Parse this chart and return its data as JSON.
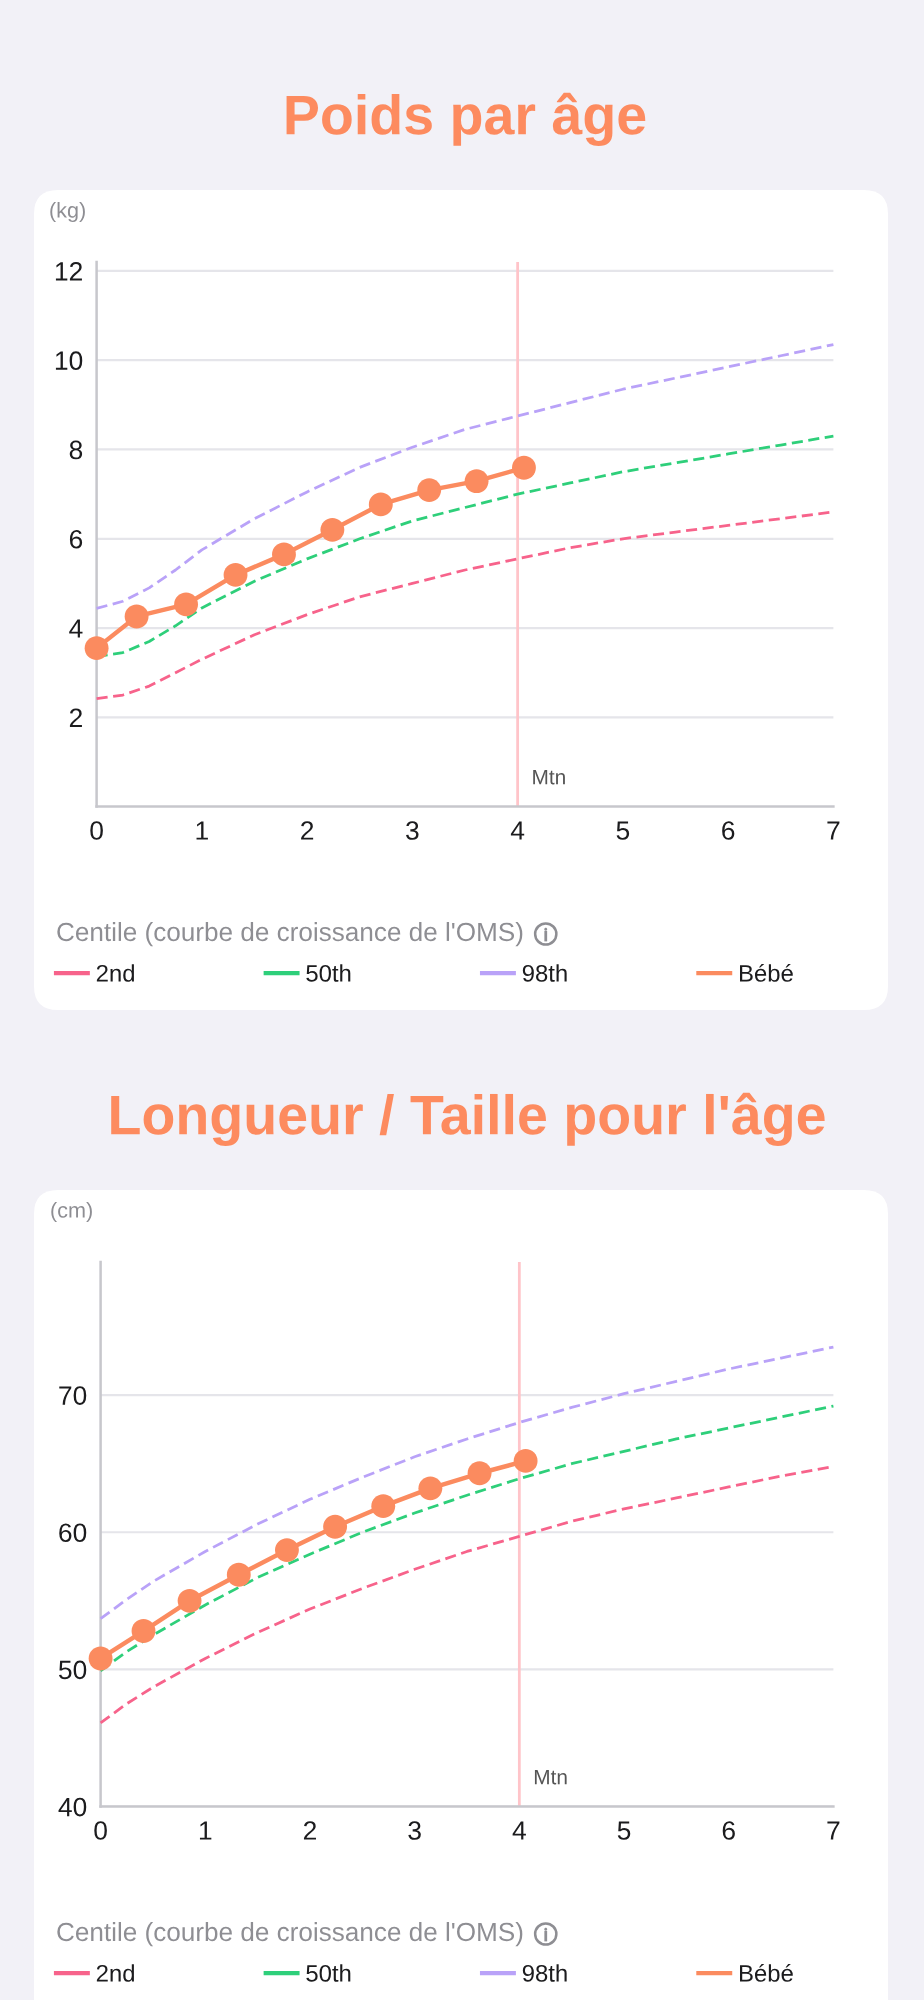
{
  "chart_data": [
    {
      "type": "line",
      "title": "Poids par âge",
      "ylabel": "(kg)",
      "legend_title": "Centile (courbe de croissance de l'OMS)",
      "legend": "bottom",
      "grid": "y",
      "xlim": [
        0,
        7
      ],
      "xticks": [
        0,
        1,
        2,
        3,
        4,
        5,
        6,
        7
      ],
      "ylim": [
        0,
        12.2
      ],
      "yticks": [
        2,
        4,
        6,
        8,
        10,
        12
      ],
      "ref_lines": [
        {
          "axis": "x",
          "value": 4,
          "label": "Mtn",
          "color": "#ffc4c9"
        }
      ],
      "series": [
        {
          "name": "2nd",
          "color": "#f7638b",
          "line_style": "dashed",
          "x": [
            0,
            0.25,
            0.5,
            0.75,
            1,
            1.5,
            2,
            2.5,
            3,
            3.5,
            4,
            4.5,
            5,
            5.5,
            6,
            6.5,
            7
          ],
          "values": [
            2.42,
            2.5,
            2.7,
            3.0,
            3.3,
            3.85,
            4.3,
            4.7,
            5.0,
            5.3,
            5.55,
            5.8,
            6.0,
            6.15,
            6.3,
            6.45,
            6.6
          ]
        },
        {
          "name": "50th",
          "color": "#2ecf7a",
          "line_style": "dashed",
          "x": [
            0,
            0.25,
            0.5,
            0.75,
            1,
            1.5,
            2,
            2.5,
            3,
            3.5,
            4,
            4.5,
            5,
            5.5,
            6,
            6.5,
            7
          ],
          "values": [
            3.36,
            3.45,
            3.7,
            4.05,
            4.45,
            5.05,
            5.55,
            6.0,
            6.4,
            6.7,
            7.0,
            7.25,
            7.5,
            7.7,
            7.9,
            8.1,
            8.3
          ]
        },
        {
          "name": "98th",
          "color": "#b9a2f8",
          "line_style": "dashed",
          "x": [
            0,
            0.25,
            0.5,
            0.75,
            1,
            1.5,
            2,
            2.5,
            3,
            3.5,
            4,
            4.5,
            5,
            5.5,
            6,
            6.5,
            7
          ],
          "values": [
            4.44,
            4.6,
            4.9,
            5.3,
            5.75,
            6.45,
            7.05,
            7.6,
            8.05,
            8.45,
            8.75,
            9.05,
            9.35,
            9.6,
            9.85,
            10.1,
            10.35
          ]
        },
        {
          "name": "Bébé",
          "color": "#fb8b5f",
          "line_style": "solid",
          "marker": "circle",
          "x": [
            0,
            0.38,
            0.85,
            1.32,
            1.78,
            2.24,
            2.7,
            3.16,
            3.61,
            4.06
          ],
          "values": [
            3.55,
            4.26,
            4.53,
            5.19,
            5.65,
            6.2,
            6.77,
            7.09,
            7.29,
            7.59
          ]
        }
      ]
    },
    {
      "type": "line",
      "title": "Longueur / Taille pour l'âge",
      "ylabel": "(cm)",
      "legend_title": "Centile (courbe de croissance de l'OMS)",
      "legend": "bottom",
      "grid": "y",
      "xlim": [
        0,
        7
      ],
      "xticks": [
        0,
        1,
        2,
        3,
        4,
        5,
        6,
        7
      ],
      "ylim": [
        40,
        79.7
      ],
      "yticks": [
        40,
        50,
        60,
        70
      ],
      "ref_lines": [
        {
          "axis": "x",
          "value": 4,
          "label": "Mtn",
          "color": "#ffc4c9"
        }
      ],
      "series": [
        {
          "name": "2nd",
          "color": "#f7638b",
          "line_style": "dashed",
          "x": [
            0,
            0.25,
            0.5,
            1,
            1.5,
            2,
            2.5,
            3,
            3.5,
            4,
            4.5,
            5,
            5.5,
            6,
            6.5,
            7
          ],
          "values": [
            46.1,
            47.5,
            48.7,
            50.8,
            52.7,
            54.4,
            55.9,
            57.3,
            58.6,
            59.7,
            60.8,
            61.7,
            62.5,
            63.3,
            64.1,
            64.8
          ]
        },
        {
          "name": "50th",
          "color": "#2ecf7a",
          "line_style": "dashed",
          "x": [
            0,
            0.25,
            0.5,
            1,
            1.5,
            2,
            2.5,
            3,
            3.5,
            4,
            4.5,
            5,
            5.5,
            6,
            6.5,
            7
          ],
          "values": [
            49.9,
            51.3,
            52.5,
            54.7,
            56.7,
            58.4,
            60.0,
            61.4,
            62.7,
            63.9,
            65.0,
            65.9,
            66.8,
            67.6,
            68.4,
            69.2
          ]
        },
        {
          "name": "98th",
          "color": "#b9a2f8",
          "line_style": "dashed",
          "x": [
            0,
            0.25,
            0.5,
            1,
            1.5,
            2,
            2.5,
            3,
            3.5,
            4,
            4.5,
            5,
            5.5,
            6,
            6.5,
            7
          ],
          "values": [
            53.7,
            55.1,
            56.4,
            58.6,
            60.6,
            62.4,
            64.0,
            65.5,
            66.8,
            68.0,
            69.1,
            70.1,
            71.0,
            71.9,
            72.7,
            73.5
          ]
        },
        {
          "name": "Bébé",
          "color": "#fb8b5f",
          "line_style": "solid",
          "marker": "circle",
          "x": [
            0,
            0.41,
            0.85,
            1.32,
            1.78,
            2.24,
            2.7,
            3.15,
            3.62,
            4.06
          ],
          "values": [
            50.8,
            52.8,
            55.0,
            56.9,
            58.7,
            60.4,
            61.9,
            63.2,
            64.3,
            65.2
          ]
        }
      ]
    }
  ]
}
